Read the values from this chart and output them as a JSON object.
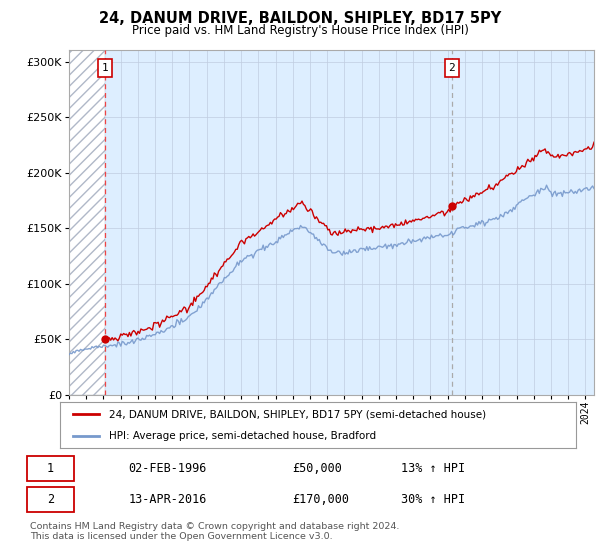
{
  "title1": "24, DANUM DRIVE, BAILDON, SHIPLEY, BD17 5PY",
  "title2": "Price paid vs. HM Land Registry's House Price Index (HPI)",
  "yticks": [
    0,
    50000,
    100000,
    150000,
    200000,
    250000,
    300000
  ],
  "ylim": [
    0,
    310000
  ],
  "xlim_start": 1994.0,
  "xlim_end": 2024.5,
  "hatch_end": 1996.08,
  "sale1_x": 1996.08,
  "sale1_y": 50000,
  "sale1_label": "1",
  "sale1_date": "02-FEB-1996",
  "sale1_price": "£50,000",
  "sale1_hpi": "13% ↑ HPI",
  "sale2_x": 2016.25,
  "sale2_y": 170000,
  "sale2_label": "2",
  "sale2_date": "13-APR-2016",
  "sale2_price": "£170,000",
  "sale2_hpi": "30% ↑ HPI",
  "legend_line1": "24, DANUM DRIVE, BAILDON, SHIPLEY, BD17 5PY (semi-detached house)",
  "legend_line2": "HPI: Average price, semi-detached house, Bradford",
  "footer": "Contains HM Land Registry data © Crown copyright and database right 2024.\nThis data is licensed under the Open Government Licence v3.0.",
  "property_color": "#cc0000",
  "hpi_color": "#7799cc",
  "bg_color": "#ddeeff",
  "grid_color": "#c0cce0",
  "sale1_vline_color": "#ee4444",
  "sale2_vline_color": "#aaaaaa",
  "sale_dot_color": "#cc0000",
  "box_edge_color": "#cc0000",
  "legend_border_color": "#999999",
  "footer_color": "#555555"
}
